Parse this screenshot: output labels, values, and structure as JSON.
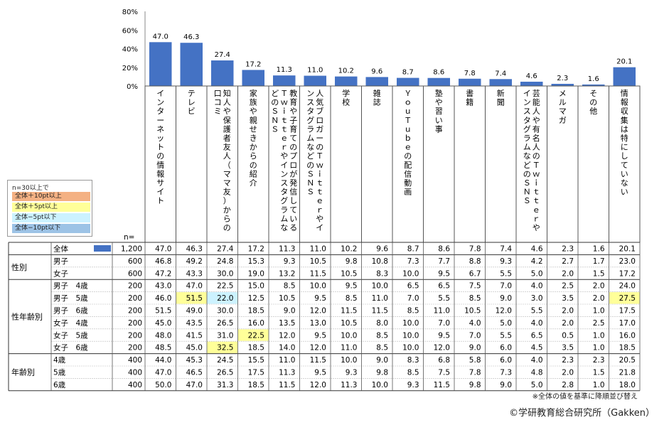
{
  "chart_data": {
    "type": "bar",
    "yaxis": {
      "ticks": [
        "0%",
        "20%",
        "40%",
        "60%",
        "80%"
      ],
      "ylim": [
        0,
        80
      ]
    },
    "categories": [
      "インターネットの情報サイト",
      "テレビ",
      "知人や保護者友人（ママ友）からの口コミ",
      "家族や親せきからの紹介",
      "教育や子育てのプロが発信しているＴｗｉｔｔｅｒやインスタグラムなどのＳＮＳ",
      "人気ブロガーのＴｗｉｔｔｅｒやインスタグラムなどのＳＮＳ",
      "学校",
      "雑誌",
      "ＹｏｕＴｕｂｅの配信動画",
      "塾や習い事",
      "書籍",
      "新聞",
      "芸能人や有名人のＴｗｉｔｔｅｒやインスタグラムなどのＳＮＳ",
      "メルマガ",
      "その他",
      "情報収集は特にしていない"
    ],
    "values": [
      47.0,
      46.3,
      27.4,
      17.2,
      11.3,
      11.0,
      10.2,
      9.6,
      8.7,
      8.6,
      7.8,
      7.4,
      4.6,
      2.3,
      1.6,
      20.1
    ],
    "value_labels": [
      "47.0",
      "46.3",
      "27.4",
      "17.2",
      "11.3",
      "11.0",
      "10.2",
      "9.6",
      "8.7",
      "8.6",
      "7.8",
      "7.4",
      "4.6",
      "2.3",
      "1.6",
      "20.1"
    ],
    "bar_color": "#4472C4",
    "n_header": "n=",
    "table": {
      "groups": [
        {
          "name": "",
          "rows": [
            {
              "label": "全体",
              "n": "1,200",
              "bar": true,
              "values": [
                "47.0",
                "46.3",
                "27.4",
                "17.2",
                "11.3",
                "11.0",
                "10.2",
                "9.6",
                "8.7",
                "8.6",
                "7.8",
                "7.4",
                "4.6",
                "2.3",
                "1.6",
                "20.1"
              ]
            }
          ]
        },
        {
          "name": "性別",
          "rows": [
            {
              "label": "男子",
              "n": "600",
              "values": [
                "46.8",
                "49.2",
                "24.8",
                "15.3",
                "9.3",
                "10.5",
                "9.8",
                "10.8",
                "7.3",
                "7.7",
                "8.8",
                "9.3",
                "4.2",
                "2.7",
                "1.7",
                "23.0"
              ]
            },
            {
              "label": "女子",
              "n": "600",
              "values": [
                "47.2",
                "43.3",
                "30.0",
                "19.0",
                "13.2",
                "11.5",
                "10.5",
                "8.3",
                "10.0",
                "9.5",
                "6.7",
                "5.5",
                "5.0",
                "2.0",
                "1.5",
                "17.2"
              ]
            }
          ]
        },
        {
          "name": "性年齢別",
          "rows": [
            {
              "label": "男子　4歳",
              "n": "200",
              "values": [
                "43.0",
                "47.0",
                "22.5",
                "15.0",
                "8.5",
                "10.0",
                "9.5",
                "10.0",
                "6.5",
                "6.5",
                "7.5",
                "7.0",
                "4.0",
                "2.5",
                "2.0",
                "24.0"
              ]
            },
            {
              "label": "男子　5歳",
              "n": "200",
              "values": [
                "46.0",
                "51.5",
                "22.0",
                "12.5",
                "10.5",
                "9.5",
                "8.5",
                "11.0",
                "7.0",
                "5.5",
                "8.5",
                "9.0",
                "3.0",
                "3.5",
                "2.0",
                "27.5"
              ]
            },
            {
              "label": "男子　6歳",
              "n": "200",
              "values": [
                "51.5",
                "49.0",
                "30.0",
                "18.5",
                "9.0",
                "12.0",
                "11.5",
                "11.5",
                "8.5",
                "11.0",
                "10.5",
                "12.0",
                "5.5",
                "2.0",
                "1.0",
                "17.5"
              ]
            },
            {
              "label": "女子　4歳",
              "n": "200",
              "values": [
                "45.0",
                "43.5",
                "26.5",
                "16.0",
                "13.5",
                "13.0",
                "10.5",
                "8.0",
                "10.0",
                "7.0",
                "4.0",
                "5.0",
                "4.0",
                "2.0",
                "2.5",
                "17.0"
              ]
            },
            {
              "label": "女子　5歳",
              "n": "200",
              "values": [
                "48.0",
                "41.5",
                "31.0",
                "22.5",
                "12.0",
                "9.5",
                "10.0",
                "8.5",
                "10.0",
                "9.5",
                "7.0",
                "5.5",
                "6.5",
                "0.5",
                "1.0",
                "16.0"
              ]
            },
            {
              "label": "女子　6歳",
              "n": "200",
              "values": [
                "48.5",
                "45.0",
                "32.5",
                "18.5",
                "14.0",
                "12.0",
                "11.0",
                "8.5",
                "10.0",
                "12.0",
                "9.0",
                "6.0",
                "4.5",
                "3.5",
                "1.0",
                "18.5"
              ]
            }
          ]
        },
        {
          "name": "年齢別",
          "rows": [
            {
              "label": "4歳",
              "n": "400",
              "values": [
                "44.0",
                "45.3",
                "24.5",
                "15.5",
                "11.0",
                "11.5",
                "10.0",
                "9.0",
                "8.3",
                "6.8",
                "5.8",
                "6.0",
                "4.0",
                "2.3",
                "2.3",
                "20.5"
              ]
            },
            {
              "label": "5歳",
              "n": "400",
              "values": [
                "47.0",
                "46.5",
                "26.5",
                "17.5",
                "11.3",
                "9.5",
                "9.3",
                "9.8",
                "8.5",
                "7.5",
                "7.8",
                "7.3",
                "4.8",
                "2.0",
                "1.5",
                "21.8"
              ]
            },
            {
              "label": "6歳",
              "n": "400",
              "values": [
                "50.0",
                "47.0",
                "31.3",
                "18.5",
                "11.5",
                "12.0",
                "11.3",
                "10.0",
                "9.3",
                "11.5",
                "9.8",
                "9.0",
                "5.0",
                "2.8",
                "1.0",
                "18.0"
              ]
            }
          ]
        }
      ],
      "highlights": [
        {
          "group": 2,
          "row": 1,
          "col": 1,
          "level": "plus5"
        },
        {
          "group": 2,
          "row": 1,
          "col": 2,
          "level": "minus5"
        },
        {
          "group": 2,
          "row": 1,
          "col": 15,
          "level": "plus5"
        },
        {
          "group": 2,
          "row": 4,
          "col": 3,
          "level": "plus5"
        },
        {
          "group": 2,
          "row": 5,
          "col": 2,
          "level": "plus5"
        }
      ]
    },
    "legend": {
      "title": "n=30以上で",
      "entries": [
        {
          "key": "plus10",
          "label": "全体＋10pt以上",
          "color": "#F4B183"
        },
        {
          "key": "plus5",
          "label": "全体＋5pt以上",
          "color": "#FFFF99"
        },
        {
          "key": "minus5",
          "label": "全体−5pt以下",
          "color": "#CCF2FF"
        },
        {
          "key": "minus10",
          "label": "全体−10pt以下",
          "color": "#9DC3E6"
        }
      ]
    }
  },
  "note": "※全体の値を基準に降順並び替え",
  "copyright": "©学研教育総合研究所（Gakken）"
}
